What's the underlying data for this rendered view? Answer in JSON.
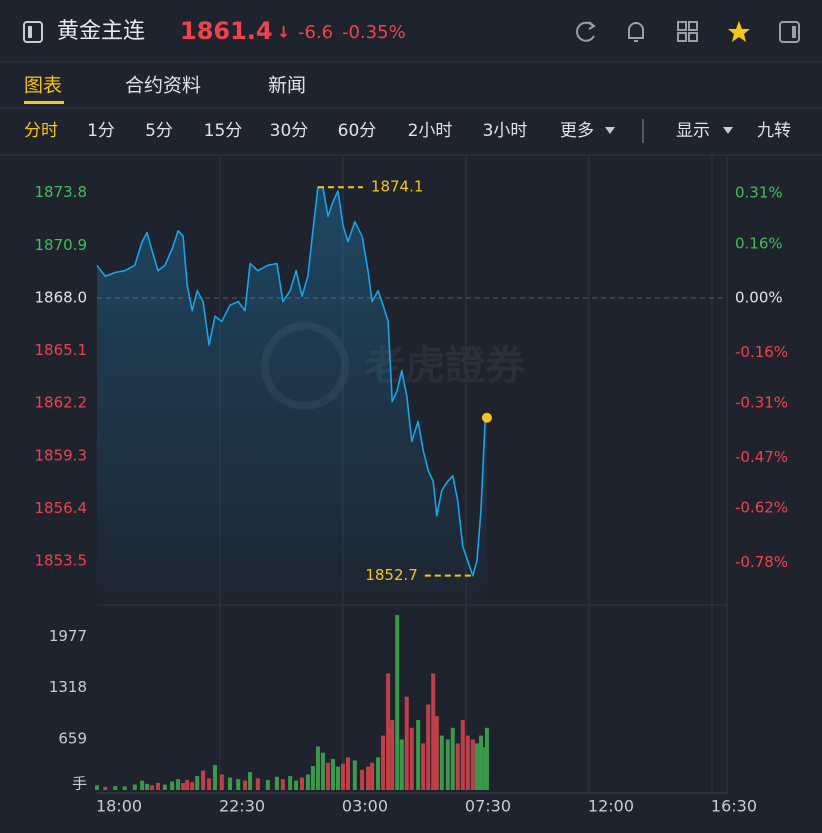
{
  "header": {
    "title": "黄金主连",
    "price": "1861.4",
    "change": "-6.6",
    "change_pct": "-0.35%"
  },
  "tabs": [
    "图表",
    "合约资料",
    "新闻"
  ],
  "periods": [
    "分时",
    "1分",
    "5分",
    "15分",
    "30分",
    "60分",
    "2小时",
    "3小时",
    "更多",
    "显示",
    "九转"
  ],
  "chart_data": {
    "type": "line",
    "watermark": "老虎證券",
    "x": [
      0,
      18,
      40,
      61,
      83,
      99,
      110,
      121,
      134,
      149,
      165,
      178,
      189,
      198,
      209,
      220,
      233,
      246,
      259,
      274,
      292,
      310,
      325,
      336,
      353,
      375,
      395,
      408,
      424,
      437,
      450,
      463,
      474,
      485,
      496,
      507,
      518,
      529,
      540,
      551,
      566,
      582,
      595,
      604,
      617,
      628,
      639,
      648,
      659,
      669,
      680,
      691,
      705,
      716,
      727,
      738,
      746,
      757,
      770,
      781,
      792,
      803,
      814,
      825,
      834,
      843,
      852,
      856
    ],
    "values": [
      1869.8,
      1869.2,
      1869.4,
      1869.5,
      1869.8,
      1871.1,
      1871.6,
      1870.6,
      1869.5,
      1869.8,
      1870.7,
      1871.7,
      1871.4,
      1868.7,
      1867.3,
      1868.4,
      1867.8,
      1865.4,
      1867.0,
      1866.7,
      1867.6,
      1867.8,
      1867.3,
      1869.9,
      1869.5,
      1869.8,
      1869.9,
      1867.8,
      1868.4,
      1869.5,
      1868.1,
      1869.2,
      1871.7,
      1874.1,
      1874.1,
      1872.5,
      1873.3,
      1873.9,
      1872.0,
      1871.1,
      1872.2,
      1871.4,
      1869.5,
      1867.8,
      1868.4,
      1867.6,
      1866.7,
      1862.3,
      1862.9,
      1864.0,
      1862.6,
      1860.1,
      1861.2,
      1859.6,
      1858.5,
      1857.9,
      1856.0,
      1857.4,
      1857.9,
      1858.2,
      1856.8,
      1854.3,
      1853.5,
      1852.7,
      1853.5,
      1856.3,
      1861.2,
      1861.4
    ],
    "line_color": "#1aa3e8",
    "high": 1874.1,
    "low": 1852.7,
    "xlim": [
      0,
      1383
    ],
    "xticks": [
      {
        "value": 0,
        "label": "18:00"
      },
      {
        "value": 270,
        "label": "22:30"
      },
      {
        "value": 540,
        "label": "03:00"
      },
      {
        "value": 810,
        "label": "07:30"
      },
      {
        "value": 1080,
        "label": "12:00"
      },
      {
        "value": 1350,
        "label": "16:30"
      }
    ],
    "ylim": [
      1851.8,
      1875.6
    ],
    "yticks": [
      1873.8,
      1870.9,
      {
        "value": 1868.0,
        "label": "1868.0"
      },
      1865.1,
      1862.2,
      1859.3,
      1856.4,
      1853.5
    ],
    "y2lim": [
      -0.867,
      0.407
    ],
    "y2ticks": [
      {
        "value": 0.31,
        "label": "0.31%"
      },
      {
        "value": 0.16,
        "label": "0.16%"
      },
      {
        "value": 0,
        "label": "0.00%"
      },
      {
        "value": -0.16,
        "label": "-0.16%"
      },
      {
        "value": -0.31,
        "label": "-0.31%"
      },
      {
        "value": -0.47,
        "label": "-0.47%"
      },
      {
        "value": -0.62,
        "label": "-0.62%"
      },
      {
        "value": -0.78,
        "label": "-0.78%"
      }
    ],
    "volume": {
      "unit": "手",
      "values": [
        60,
        40,
        50,
        45,
        70,
        120,
        80,
        60,
        90,
        70,
        110,
        140,
        90,
        130,
        100,
        180,
        250,
        150,
        320,
        200,
        160,
        140,
        120,
        230,
        150,
        130,
        170,
        140,
        180,
        120,
        160,
        200,
        310,
        560,
        480,
        350,
        400,
        300,
        340,
        420,
        380,
        260,
        300,
        350,
        420,
        700,
        1500,
        900,
        2250,
        650,
        1200,
        800,
        900,
        600,
        1100,
        1500,
        950,
        700,
        650,
        800,
        600,
        900,
        700,
        650,
        600,
        700,
        550,
        800
      ],
      "ylim": [
        0,
        2380
      ],
      "yticks": [
        659,
        1318,
        1977
      ],
      "up_color": "#3a9a4a",
      "down_color": "#c0404a"
    }
  }
}
